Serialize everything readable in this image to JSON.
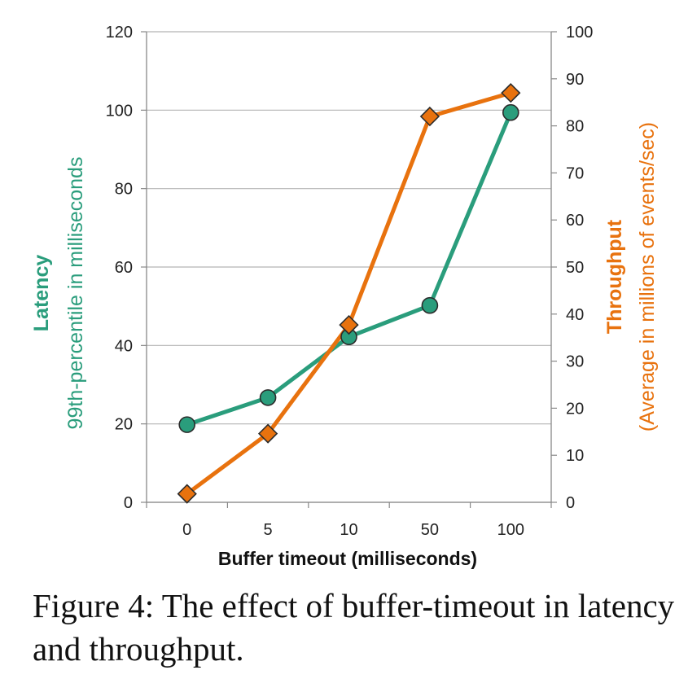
{
  "chart_data": {
    "type": "line",
    "categories": [
      "0",
      "5",
      "10",
      "50",
      "100"
    ],
    "xlabel": "Buffer timeout (milliseconds)",
    "left_axis": {
      "label": "Latency",
      "sublabel": "99th-percentile in milliseconds",
      "ylim": [
        0,
        120
      ],
      "ticks": [
        0,
        20,
        40,
        60,
        80,
        100,
        120
      ]
    },
    "right_axis": {
      "label": "Throughput",
      "sublabel": "(Average in millions of events/sec)",
      "ylim": [
        0,
        100
      ],
      "ticks": [
        0,
        10,
        20,
        30,
        40,
        50,
        60,
        70,
        80,
        90,
        100
      ]
    },
    "series": [
      {
        "axis": "left",
        "color": "#2a9d7c",
        "marker": "circle",
        "values": [
          19.8,
          26.7,
          42.2,
          50.2,
          99.4
        ]
      },
      {
        "axis": "right",
        "color": "#e8720e",
        "marker": "diamond",
        "values": [
          1.8,
          14.6,
          37.7,
          82.0,
          87.0
        ]
      }
    ],
    "grid": true
  },
  "caption": "Figure 4: The effect of buffer-timeout in latency and throughput."
}
